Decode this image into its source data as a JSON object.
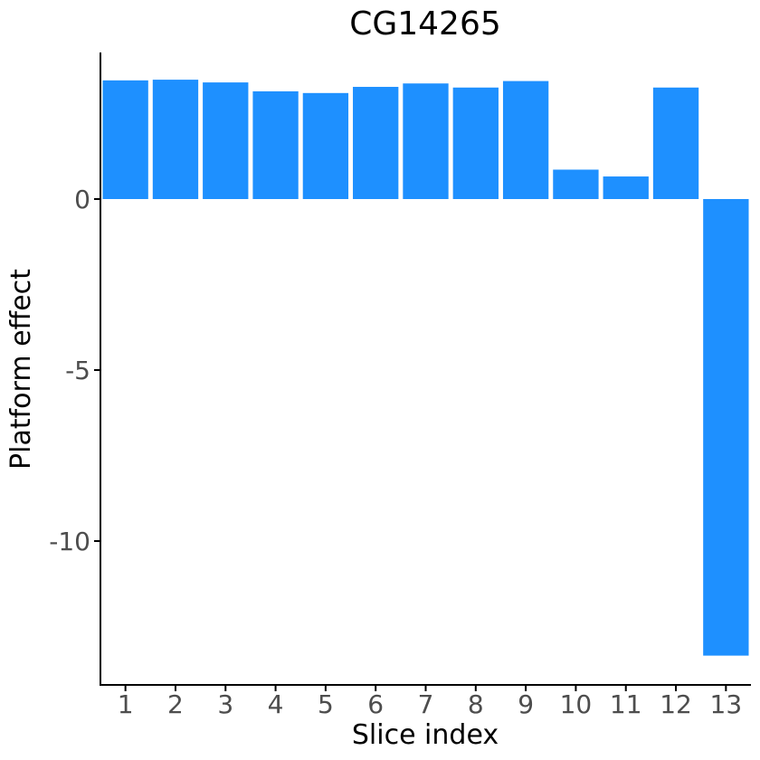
{
  "chart_data": {
    "type": "bar",
    "title": "CG14265",
    "xlabel": "Slice index",
    "ylabel": "Platform effect",
    "categories": [
      "1",
      "2",
      "3",
      "4",
      "5",
      "6",
      "7",
      "8",
      "9",
      "10",
      "11",
      "12",
      "13"
    ],
    "values": [
      3.47,
      3.49,
      3.41,
      3.15,
      3.1,
      3.28,
      3.38,
      3.26,
      3.45,
      0.86,
      0.66,
      3.26,
      -13.35
    ],
    "yticks": [
      0,
      -5,
      -10
    ],
    "ytick_labels": [
      "0",
      "-5",
      "-10"
    ],
    "ylim": [
      -14.0,
      4.3
    ],
    "grid": false,
    "legend": "none",
    "colors": {
      "bar": "#1e90ff",
      "axis": "#000000",
      "tick_text": "#4d4d4d"
    }
  }
}
